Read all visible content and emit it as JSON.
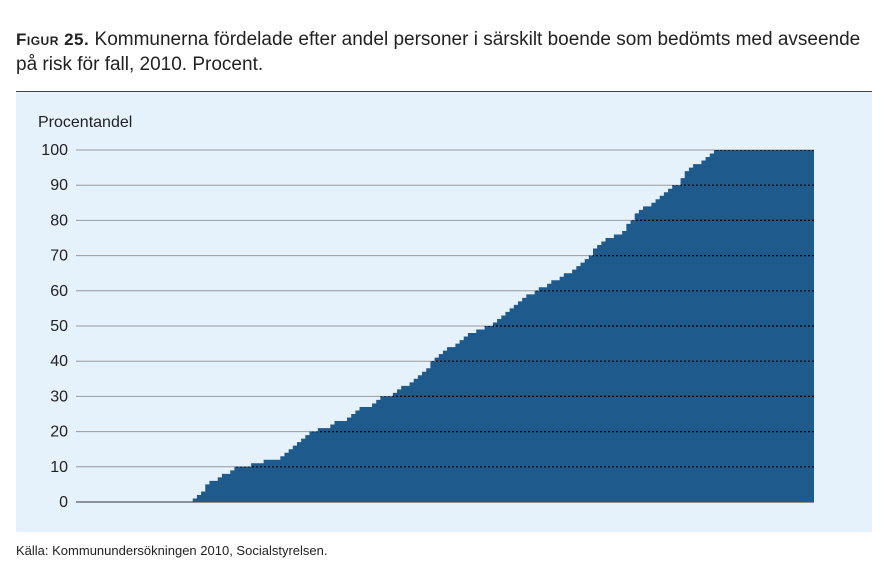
{
  "figure": {
    "label": "Figur 25.",
    "title": "Kommunerna fördelade efter andel personer i särskilt boende som bedömts med avseende på risk för fall, 2010. Procent.",
    "source": "Källa: Kommunundersökningen 2010, Socialstyrelsen."
  },
  "colors": {
    "panel_background": "#e5f1fb",
    "bar_fill": "#1f5a8c",
    "gridline": "#9a9a9a",
    "gridline_on_bars": "#000000"
  },
  "chart_data": {
    "type": "area",
    "title": "",
    "xlabel": "",
    "ylabel": "Procentandel",
    "ylim": [
      0,
      100
    ],
    "yticks": [
      0,
      10,
      20,
      30,
      40,
      50,
      60,
      70,
      80,
      90,
      100
    ],
    "grid": true,
    "legend": "none",
    "description_of_x": "municipalities sorted ascending (no x-axis labels shown)",
    "series": [
      {
        "values": [
          0,
          0,
          0,
          0,
          0,
          0,
          0,
          0,
          0,
          0,
          0,
          0,
          0,
          0,
          0,
          0,
          0,
          0,
          0,
          0,
          0,
          0,
          0,
          0,
          0,
          0,
          0,
          0,
          1,
          2,
          3,
          5,
          6,
          6,
          7,
          8,
          8,
          9,
          10,
          10,
          10,
          10,
          11,
          11,
          11,
          12,
          12,
          12,
          12,
          13,
          14,
          15,
          16,
          17,
          18,
          19,
          20,
          20,
          21,
          21,
          21,
          22,
          23,
          23,
          23,
          24,
          25,
          26,
          27,
          27,
          27,
          28,
          29,
          30,
          30,
          30,
          31,
          32,
          33,
          33,
          34,
          35,
          36,
          37,
          38,
          40,
          41,
          42,
          43,
          44,
          44,
          45,
          46,
          47,
          48,
          48,
          49,
          49,
          50,
          50,
          51,
          52,
          53,
          54,
          55,
          56,
          57,
          58,
          59,
          59,
          60,
          61,
          61,
          62,
          63,
          63,
          64,
          65,
          65,
          66,
          67,
          68,
          69,
          70,
          72,
          73,
          74,
          75,
          75,
          76,
          76,
          77,
          79,
          80,
          82,
          83,
          84,
          84,
          85,
          86,
          87,
          88,
          89,
          90,
          90,
          92,
          94,
          95,
          96,
          96,
          97,
          98,
          99,
          100,
          100,
          100,
          100,
          100,
          100,
          100,
          100,
          100,
          100,
          100,
          100,
          100,
          100,
          100,
          100,
          100,
          100,
          100,
          100,
          100,
          100,
          100,
          100
        ]
      }
    ]
  }
}
